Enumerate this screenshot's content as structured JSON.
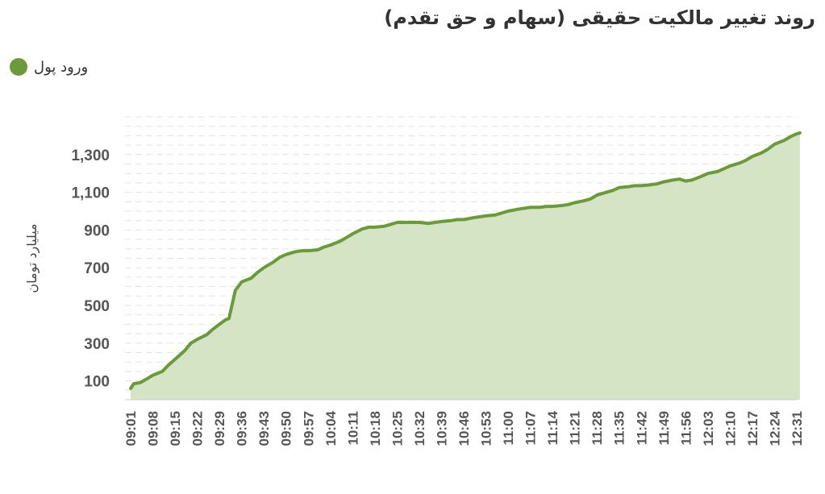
{
  "chart_data": {
    "type": "area",
    "title": "روند تغییر مالکیت حقیقی (سهام و حق تقدم)",
    "ylabel": "میلیارد تومان",
    "xlabel": "",
    "ylim": [
      0,
      1500
    ],
    "yticks": [
      100,
      300,
      500,
      700,
      900,
      1100,
      1300
    ],
    "ytick_labels": [
      "100",
      "300",
      "500",
      "700",
      "900",
      "1,100",
      "1,300"
    ],
    "grid": true,
    "legend_position": "top-left",
    "color": "#6a9a3a",
    "fill_color": "#d4e4c4",
    "xtick_labels": [
      "09:01",
      "09:08",
      "09:15",
      "09:22",
      "09:29",
      "09:36",
      "09:43",
      "09:50",
      "09:57",
      "10:04",
      "10:11",
      "10:18",
      "10:25",
      "10:32",
      "10:39",
      "10:46",
      "10:53",
      "11:00",
      "11:07",
      "11:14",
      "11:21",
      "11:28",
      "11:35",
      "11:42",
      "11:49",
      "11:56",
      "12:03",
      "12:10",
      "12:17",
      "12:24",
      "12:31"
    ],
    "series": [
      {
        "name": "ورود پول",
        "x": [
          "09:01",
          "09:02",
          "09:04",
          "09:06",
          "09:08",
          "09:11",
          "09:13",
          "09:15",
          "09:18",
          "09:20",
          "09:22",
          "09:25",
          "09:27",
          "09:29",
          "09:31",
          "09:32",
          "09:34",
          "09:36",
          "09:39",
          "09:41",
          "09:43",
          "09:46",
          "09:48",
          "09:50",
          "09:53",
          "09:55",
          "09:57",
          "10:00",
          "10:02",
          "10:04",
          "10:07",
          "10:09",
          "10:11",
          "10:14",
          "10:16",
          "10:18",
          "10:21",
          "10:23",
          "10:25",
          "10:28",
          "10:30",
          "10:32",
          "10:35",
          "10:37",
          "10:39",
          "10:42",
          "10:44",
          "10:46",
          "10:49",
          "10:51",
          "10:53",
          "10:56",
          "10:58",
          "11:00",
          "11:03",
          "11:05",
          "11:07",
          "11:10",
          "11:12",
          "11:14",
          "11:17",
          "11:19",
          "11:21",
          "11:24",
          "11:26",
          "11:28",
          "11:31",
          "11:33",
          "11:35",
          "11:38",
          "11:40",
          "11:42",
          "11:45",
          "11:47",
          "11:49",
          "11:52",
          "11:54",
          "11:56",
          "11:58",
          "12:01",
          "12:03",
          "12:06",
          "12:08",
          "12:10",
          "12:13",
          "12:15",
          "12:17",
          "12:20",
          "12:22",
          "12:24",
          "12:27",
          "12:29",
          "12:31",
          "12:32"
        ],
        "values": [
          60,
          85,
          90,
          110,
          130,
          150,
          185,
          215,
          260,
          300,
          320,
          345,
          375,
          400,
          425,
          430,
          580,
          625,
          645,
          675,
          700,
          730,
          755,
          770,
          785,
          790,
          790,
          795,
          810,
          820,
          840,
          860,
          880,
          905,
          915,
          915,
          920,
          930,
          940,
          940,
          940,
          940,
          935,
          940,
          945,
          950,
          955,
          955,
          965,
          970,
          975,
          980,
          990,
          1000,
          1010,
          1015,
          1020,
          1020,
          1025,
          1025,
          1030,
          1035,
          1045,
          1055,
          1065,
          1085,
          1100,
          1110,
          1125,
          1130,
          1135,
          1135,
          1140,
          1145,
          1155,
          1165,
          1170,
          1160,
          1165,
          1185,
          1200,
          1210,
          1225,
          1240,
          1255,
          1270,
          1290,
          1310,
          1330,
          1355,
          1375,
          1395,
          1410,
          1415
        ]
      }
    ]
  }
}
